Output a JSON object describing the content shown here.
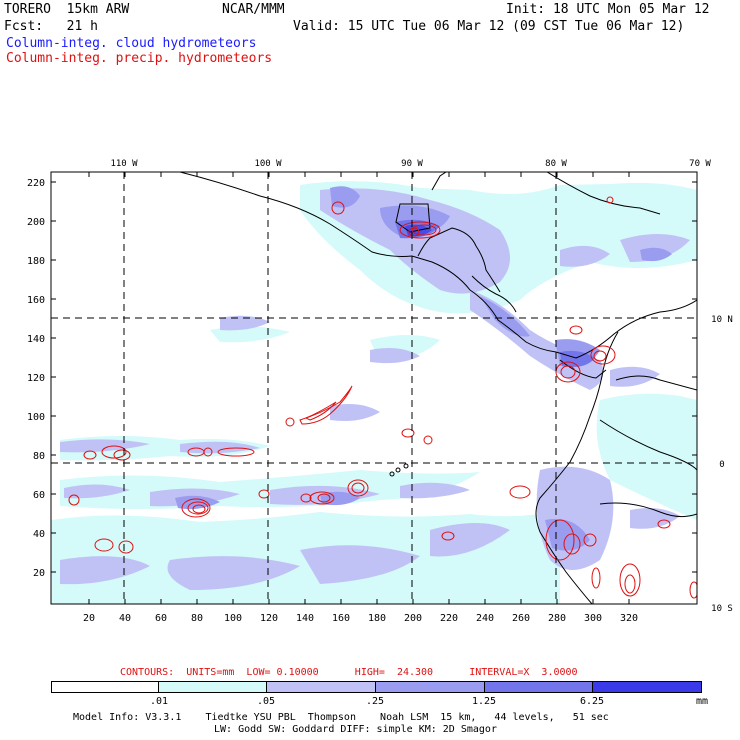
{
  "header": {
    "model_name": "TORERO  15km ARW",
    "org": "NCAR/MMM",
    "init": "Init: 18 UTC Mon 05 Mar 12",
    "fcst": "Fcst:   21 h",
    "valid": "Valid: 15 UTC Tue 06 Mar 12 (09 CST Tue 06 Mar 12)",
    "field1": "Column-integ. cloud hydrometeors",
    "field2": "Column-integ. precip. hydrometeors"
  },
  "map": {
    "lon_labels": [
      "110 W",
      "100 W",
      "90 W",
      "80 W",
      "70 W"
    ],
    "lat_labels": [
      "10 N",
      "0",
      "10 S"
    ],
    "y_ticks": [
      "220",
      "200",
      "180",
      "160",
      "140",
      "120",
      "100",
      "80",
      "60",
      "40",
      "20"
    ],
    "x_ticks": [
      "20",
      "40",
      "60",
      "80",
      "100",
      "120",
      "140",
      "160",
      "180",
      "200",
      "220",
      "240",
      "260",
      "280",
      "300",
      "320"
    ],
    "colors": {
      "level1": "#d4fafa",
      "level2": "#c0c2f6",
      "level3": "#9a9cf0",
      "level4": "#7375ea",
      "level5": "#4a4ae6",
      "level6": "#2222e6",
      "contour": "#e01010",
      "coast": "#000000"
    }
  },
  "contour_info": {
    "label": "CONTOURS:  UNITS=mm  LOW= 0.10000      HIGH=  24.300      INTERVAL=X  3.0000"
  },
  "legend": {
    "levels": [
      ".01",
      ".05",
      ".25",
      "1.25",
      "6.25"
    ],
    "unit": "mm"
  },
  "footer": {
    "line1": "Model Info: V3.3.1    Tiedtke YSU PBL  Thompson    Noah LSM  15 km,   44 levels,   51 sec",
    "line2": "LW: Godd SW: Goddard DIFF: simple KM: 2D Smagor"
  }
}
